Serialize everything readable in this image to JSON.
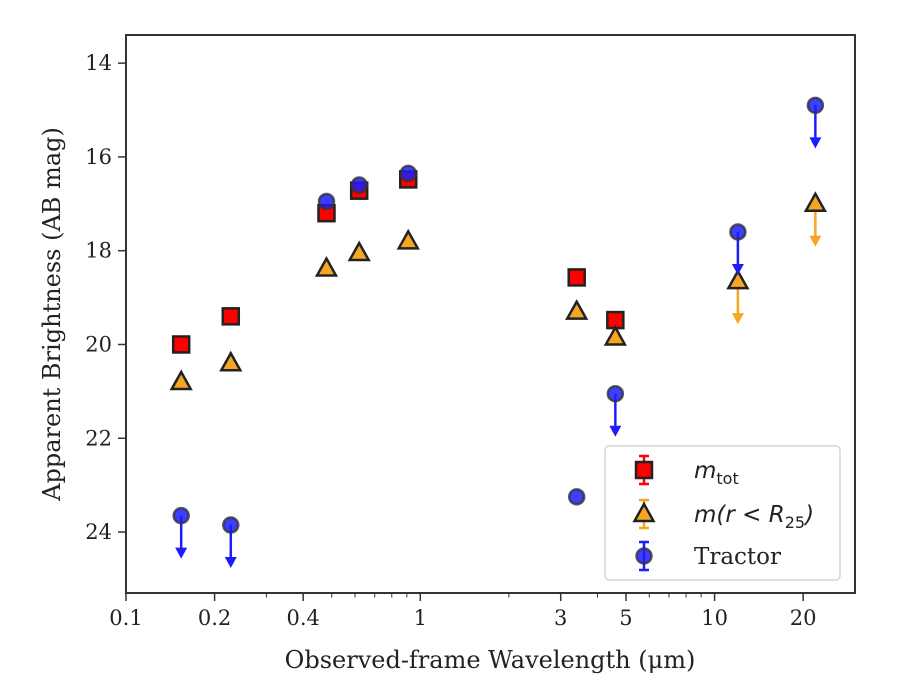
{
  "chart_data": {
    "type": "scatter",
    "xlabel": "Observed-frame Wavelength (μm)",
    "ylabel": "Apparent Brightness (AB mag)",
    "x_scale": "log",
    "xlim": [
      0.1,
      30
    ],
    "ylim": [
      25.3,
      13.4
    ],
    "y_inverted": true,
    "x_ticks": [
      0.1,
      0.2,
      0.4,
      1,
      3,
      5,
      10,
      20
    ],
    "x_tick_labels": [
      "0.1",
      "0.2",
      "0.4",
      "1",
      "3",
      "5",
      "10",
      "20"
    ],
    "y_ticks": [
      14,
      16,
      18,
      20,
      22,
      24
    ],
    "y_tick_labels": [
      "14",
      "16",
      "18",
      "20",
      "22",
      "24"
    ],
    "grid": false,
    "legend_position": "lower-right",
    "series": [
      {
        "name": "m_tot",
        "legend_main": "m",
        "legend_sub": "tot",
        "marker": "square",
        "color": "#ff0000",
        "points": [
          {
            "x": 0.154,
            "y": 20.0
          },
          {
            "x": 0.227,
            "y": 19.4
          },
          {
            "x": 0.48,
            "y": 17.2
          },
          {
            "x": 0.62,
            "y": 16.72
          },
          {
            "x": 0.91,
            "y": 16.48
          },
          {
            "x": 3.4,
            "y": 18.57
          },
          {
            "x": 4.6,
            "y": 19.48
          }
        ]
      },
      {
        "name": "m(r < R25)",
        "legend_main": "m(r < R",
        "legend_sub": "25",
        "legend_close": ")",
        "marker": "triangle",
        "color": "#f5a623",
        "points": [
          {
            "x": 0.154,
            "y": 20.8
          },
          {
            "x": 0.227,
            "y": 20.4
          },
          {
            "x": 0.48,
            "y": 18.38
          },
          {
            "x": 0.62,
            "y": 18.05
          },
          {
            "x": 0.91,
            "y": 17.8
          },
          {
            "x": 3.4,
            "y": 19.3
          },
          {
            "x": 4.6,
            "y": 19.85
          },
          {
            "x": 12.0,
            "y": 18.65,
            "upper_limit": true
          },
          {
            "x": 22.0,
            "y": 17.0,
            "upper_limit": true
          }
        ]
      },
      {
        "name": "Tractor",
        "marker": "circle",
        "color": "#1c1cff",
        "points": [
          {
            "x": 0.154,
            "y": 23.65,
            "upper_limit": true
          },
          {
            "x": 0.227,
            "y": 23.85,
            "upper_limit": true
          },
          {
            "x": 0.48,
            "y": 16.95
          },
          {
            "x": 0.62,
            "y": 16.6
          },
          {
            "x": 0.91,
            "y": 16.35
          },
          {
            "x": 3.4,
            "y": 23.25
          },
          {
            "x": 4.6,
            "y": 21.05,
            "upper_limit": true
          },
          {
            "x": 12.0,
            "y": 17.6,
            "upper_limit": true
          },
          {
            "x": 22.0,
            "y": 14.9,
            "upper_limit": true
          }
        ]
      }
    ]
  }
}
